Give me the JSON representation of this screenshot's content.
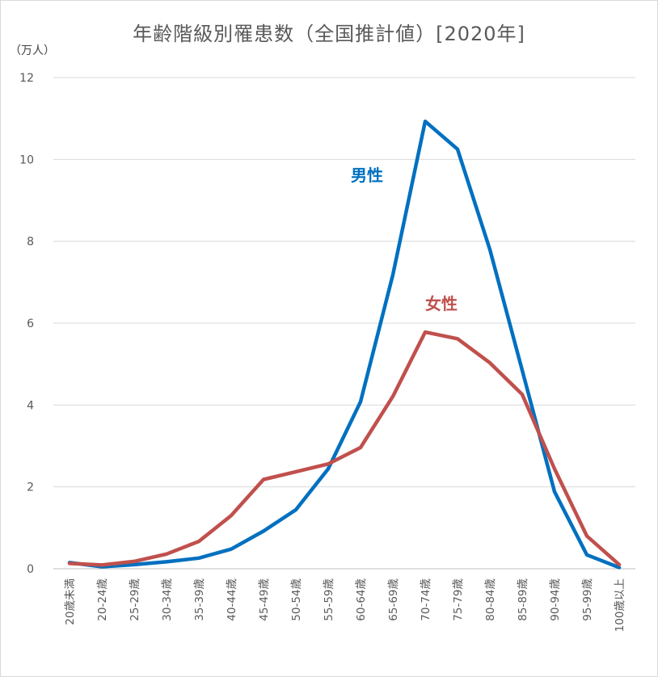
{
  "chart_data": {
    "type": "line",
    "title": "年齢階級別罹患数（全国推計値）[2020年]",
    "ylabel": "（万人）",
    "xlabel": "",
    "ylim": [
      0,
      12
    ],
    "yticks": [
      0,
      2,
      4,
      6,
      8,
      10,
      12
    ],
    "grid": true,
    "legend": "inline labels",
    "categories": [
      "20歳未満",
      "20-24歳",
      "25-29歳",
      "30-34歳",
      "35-39歳",
      "40-44歳",
      "45-49歳",
      "50-54歳",
      "55-59歳",
      "60-64歳",
      "65-69歳",
      "70-74歳",
      "75-79歳",
      "80-84歳",
      "85-89歳",
      "90-94歳",
      "95-99歳",
      "100歳以上"
    ],
    "series": [
      {
        "name": "男性",
        "color": "#0070c0",
        "values": [
          0.15,
          0.05,
          0.1,
          0.17,
          0.26,
          0.48,
          0.92,
          1.44,
          2.44,
          4.08,
          7.18,
          10.93,
          10.25,
          7.8,
          4.85,
          1.88,
          0.34,
          0.03
        ]
      },
      {
        "name": "女性",
        "color": "#c0504d",
        "values": [
          0.13,
          0.09,
          0.18,
          0.36,
          0.67,
          1.3,
          2.18,
          2.37,
          2.56,
          2.96,
          4.21,
          5.78,
          5.62,
          5.03,
          4.26,
          2.44,
          0.8,
          0.1
        ]
      }
    ]
  }
}
